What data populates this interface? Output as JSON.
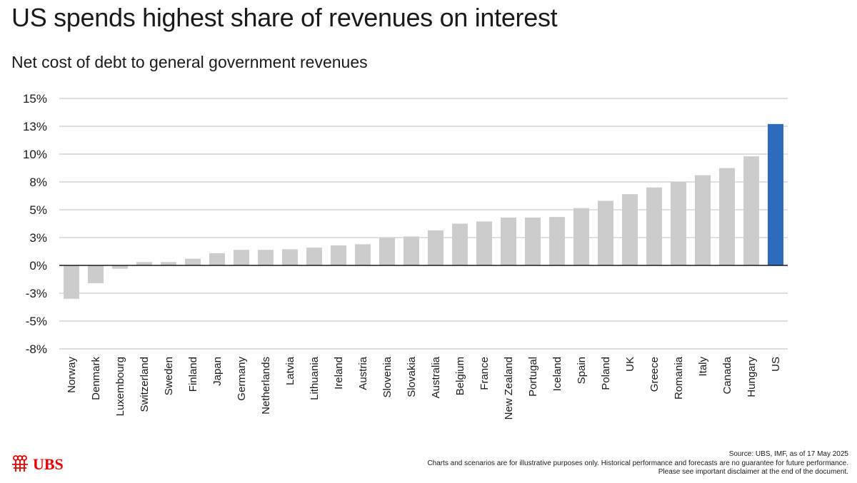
{
  "title": "US spends highest share of revenues on interest",
  "subtitle": "Net cost of debt to general government revenues",
  "chart_data": {
    "type": "bar",
    "categories": [
      "Norway",
      "Denmark",
      "Luxembourg",
      "Switzerland",
      "Sweden",
      "Finland",
      "Japan",
      "Germany",
      "Netherlands",
      "Latvia",
      "Lithuania",
      "Ireland",
      "Austria",
      "Slovenia",
      "Slovakia",
      "Australia",
      "Belgium",
      "France",
      "New Zealand",
      "Portugal",
      "Iceland",
      "Spain",
      "Poland",
      "UK",
      "Greece",
      "Romania",
      "Italy",
      "Canada",
      "Hungary",
      "US"
    ],
    "values": [
      -3.0,
      -1.6,
      -0.3,
      0.3,
      0.3,
      0.6,
      1.1,
      1.4,
      1.4,
      1.45,
      1.6,
      1.8,
      1.9,
      2.45,
      2.6,
      3.15,
      3.75,
      3.95,
      4.3,
      4.3,
      4.35,
      5.15,
      5.8,
      6.4,
      7.0,
      7.5,
      8.1,
      8.75,
      9.8,
      12.7
    ],
    "highlight": "US",
    "bar_color": "#cccccc",
    "highlight_color": "#2e6bbd",
    "ylim": [
      -7.5,
      15
    ],
    "yticks": [
      15,
      12.5,
      10,
      7.5,
      5,
      2.5,
      0,
      -2.5,
      -5,
      -7.5
    ],
    "ytick_labels": [
      "15%",
      "13%",
      "10%",
      "8%",
      "5%",
      "3%",
      "0%",
      "-3%",
      "-5%",
      "-8%"
    ],
    "xlabel": "",
    "ylabel": "",
    "grid": true
  },
  "logo": {
    "text": "UBS",
    "color": "#e60000"
  },
  "footer": {
    "source": "Source: UBS, IMF, as of 17 May 2025",
    "disclaimer1": "Charts and scenarios are for illustrative purposes only. Historical performance and forecasts are no guarantee for future performance.",
    "disclaimer2": "Please see important disclaimer at the end of the document."
  }
}
